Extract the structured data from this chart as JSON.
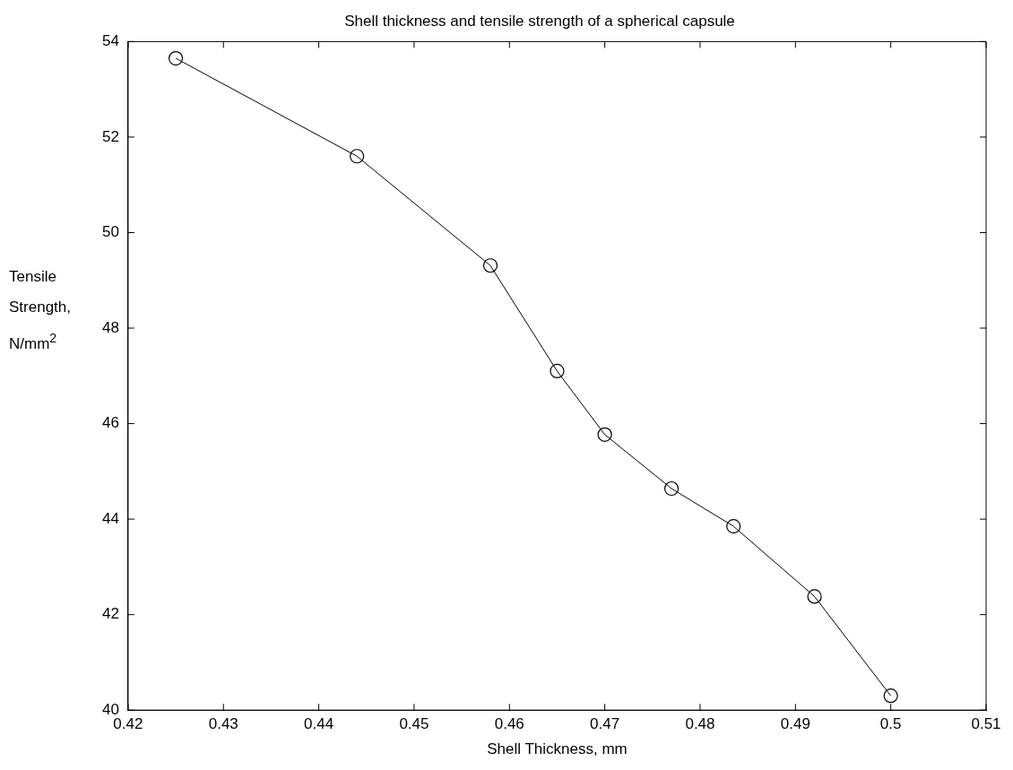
{
  "chart_data": {
    "type": "line",
    "title": "Shell thickness and tensile strength of a spherical capsule",
    "xlabel": "Shell Thickness, mm",
    "ylabel": "Tensile\nStrength,\nN/mm$^{2}$",
    "x": [
      0.425,
      0.444,
      0.458,
      0.465,
      0.47,
      0.477,
      0.4835,
      0.492,
      0.5
    ],
    "series": [
      {
        "color": "#000000",
        "values": [
          53.65,
          51.6,
          49.31,
          47.1,
          45.77,
          44.64,
          43.85,
          42.38,
          40.3
        ]
      }
    ],
    "xlim": [
      0.42,
      0.51
    ],
    "xticks": [
      0.42,
      0.43,
      0.44,
      0.45,
      0.46,
      0.47,
      0.48,
      0.49,
      0.5,
      0.51
    ],
    "ylim": [
      40,
      54
    ],
    "yticks": [
      40,
      42,
      44,
      46,
      48,
      50,
      52,
      54
    ],
    "grid": false,
    "legend": false,
    "marker": "circle",
    "line_style": "solid"
  }
}
